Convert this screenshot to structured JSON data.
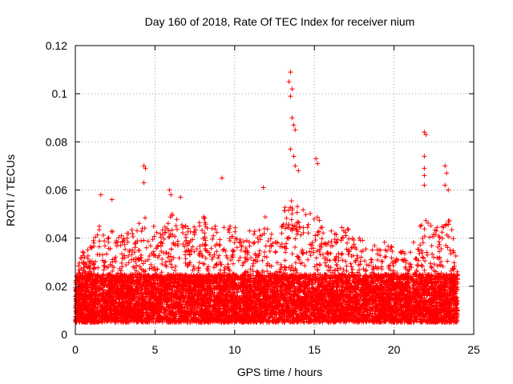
{
  "chart_data": {
    "type": "scatter",
    "title": "Day 160 of 2018, Rate Of TEC Index for receiver nium",
    "xlabel": "GPS time / hours",
    "ylabel": "ROTI / TECUs",
    "xlim": [
      0,
      25
    ],
    "ylim": [
      0,
      0.12
    ],
    "grid": true,
    "marker": "+",
    "color": "#ff0000",
    "x_ticks": [
      0,
      5,
      10,
      15,
      20,
      25
    ],
    "x_tick_labels": [
      "0",
      "5",
      "10",
      "15",
      "20",
      "25"
    ],
    "y_ticks": [
      0,
      0.02,
      0.04,
      0.06,
      0.08,
      0.1,
      0.12
    ],
    "y_tick_labels": [
      "0",
      "0.02",
      "0.04",
      "0.06",
      "0.08",
      "0.1",
      "0.12"
    ],
    "series": [
      {
        "name": "ROTI",
        "data_window_hours": [
          0,
          24
        ],
        "baseline_range": [
          0.005,
          0.025
        ],
        "envelope": [
          [
            0.0,
            0.03
          ],
          [
            0.5,
            0.035
          ],
          [
            1.0,
            0.04
          ],
          [
            1.5,
            0.045
          ],
          [
            2.0,
            0.04
          ],
          [
            2.5,
            0.045
          ],
          [
            3.0,
            0.04
          ],
          [
            3.5,
            0.045
          ],
          [
            4.0,
            0.05
          ],
          [
            4.5,
            0.05
          ],
          [
            5.0,
            0.045
          ],
          [
            5.5,
            0.045
          ],
          [
            6.0,
            0.05
          ],
          [
            6.5,
            0.05
          ],
          [
            7.0,
            0.045
          ],
          [
            7.5,
            0.045
          ],
          [
            8.0,
            0.05
          ],
          [
            8.5,
            0.045
          ],
          [
            9.0,
            0.045
          ],
          [
            9.5,
            0.045
          ],
          [
            10.0,
            0.045
          ],
          [
            10.5,
            0.04
          ],
          [
            11.0,
            0.045
          ],
          [
            11.5,
            0.045
          ],
          [
            12.0,
            0.05
          ],
          [
            12.5,
            0.045
          ],
          [
            13.0,
            0.05
          ],
          [
            13.5,
            0.06
          ],
          [
            14.0,
            0.055
          ],
          [
            14.5,
            0.05
          ],
          [
            15.0,
            0.055
          ],
          [
            15.5,
            0.045
          ],
          [
            16.0,
            0.045
          ],
          [
            16.5,
            0.045
          ],
          [
            17.0,
            0.045
          ],
          [
            17.5,
            0.04
          ],
          [
            18.0,
            0.04
          ],
          [
            18.5,
            0.04
          ],
          [
            19.0,
            0.035
          ],
          [
            19.5,
            0.04
          ],
          [
            20.0,
            0.035
          ],
          [
            20.5,
            0.035
          ],
          [
            21.0,
            0.035
          ],
          [
            21.5,
            0.045
          ],
          [
            22.0,
            0.05
          ],
          [
            22.5,
            0.045
          ],
          [
            23.0,
            0.045
          ],
          [
            23.5,
            0.05
          ],
          [
            24.0,
            0.03
          ]
        ],
        "spikes": [
          {
            "x": 1.6,
            "y": 0.058
          },
          {
            "x": 2.3,
            "y": 0.056
          },
          {
            "x": 4.3,
            "y": 0.07
          },
          {
            "x": 4.4,
            "y": 0.069
          },
          {
            "x": 4.3,
            "y": 0.063
          },
          {
            "x": 5.9,
            "y": 0.06
          },
          {
            "x": 6.0,
            "y": 0.058
          },
          {
            "x": 6.6,
            "y": 0.057
          },
          {
            "x": 9.2,
            "y": 0.065
          },
          {
            "x": 11.8,
            "y": 0.061
          },
          {
            "x": 13.5,
            "y": 0.109
          },
          {
            "x": 13.4,
            "y": 0.105
          },
          {
            "x": 13.6,
            "y": 0.102
          },
          {
            "x": 13.5,
            "y": 0.099
          },
          {
            "x": 13.6,
            "y": 0.09
          },
          {
            "x": 13.7,
            "y": 0.087
          },
          {
            "x": 13.8,
            "y": 0.085
          },
          {
            "x": 13.5,
            "y": 0.077
          },
          {
            "x": 13.7,
            "y": 0.074
          },
          {
            "x": 13.8,
            "y": 0.07
          },
          {
            "x": 14.0,
            "y": 0.068
          },
          {
            "x": 15.1,
            "y": 0.073
          },
          {
            "x": 15.2,
            "y": 0.071
          },
          {
            "x": 21.9,
            "y": 0.084
          },
          {
            "x": 22.0,
            "y": 0.083
          },
          {
            "x": 21.9,
            "y": 0.074
          },
          {
            "x": 21.9,
            "y": 0.069
          },
          {
            "x": 21.9,
            "y": 0.066
          },
          {
            "x": 21.9,
            "y": 0.062
          },
          {
            "x": 23.2,
            "y": 0.07
          },
          {
            "x": 23.3,
            "y": 0.067
          },
          {
            "x": 23.2,
            "y": 0.062
          },
          {
            "x": 23.4,
            "y": 0.06
          }
        ]
      }
    ]
  }
}
